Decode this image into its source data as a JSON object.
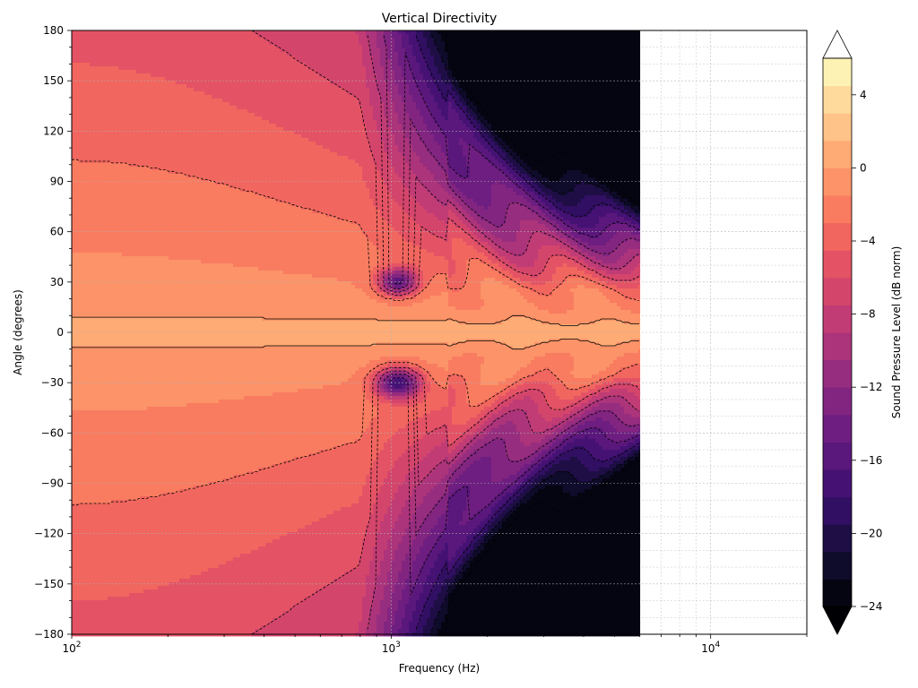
{
  "chart_data": {
    "type": "heatmap",
    "title": "Vertical Directivity",
    "xlabel": "Frequency (Hz)",
    "ylabel": "Angle (degrees)",
    "x_scale": "log",
    "xlim": [
      100,
      20000
    ],
    "ylim": [
      -180,
      180
    ],
    "data_x_max": 6000,
    "x_ticks": [
      {
        "value": 100,
        "base": "10",
        "exp": "2"
      },
      {
        "value": 1000,
        "base": "10",
        "exp": "3"
      },
      {
        "value": 10000,
        "base": "10",
        "exp": "4"
      }
    ],
    "y_ticks": [
      180,
      150,
      120,
      90,
      60,
      30,
      0,
      -30,
      -60,
      -90,
      -120,
      -150,
      -180
    ],
    "y_tick_labels": [
      "180",
      "150",
      "120",
      "90",
      "60",
      "30",
      "0",
      "−30",
      "−60",
      "−90",
      "−120",
      "−150",
      "−180"
    ],
    "grid": true,
    "colormap": "magma",
    "colorbar": {
      "label": "Sound Pressure Level (dB norm)",
      "min": -24,
      "max": 6,
      "step": 1.5,
      "extend": "both",
      "ticks": [
        4,
        0,
        -4,
        -8,
        -12,
        -16,
        -20,
        -24
      ],
      "tick_labels": [
        "4",
        "0",
        "−4",
        "−8",
        "−12",
        "−16",
        "−20",
        "−24"
      ]
    },
    "contour_levels": [
      0,
      -3,
      -6,
      -9,
      -12,
      -15,
      -18,
      -21,
      -24
    ],
    "features": {
      "on_axis_level_db": 0,
      "null_angles_deg": [
        30,
        -30
      ],
      "null_frequency_hz": 1050,
      "null_depth_db": -20
    }
  },
  "colors": {
    "background": "#ffffff",
    "grid": "#b0b0b0",
    "contour": "#000000",
    "magma_stops": [
      "#000004",
      "#140e36",
      "#3b0f70",
      "#641a80",
      "#8c2981",
      "#b73779",
      "#de4968",
      "#f7705c",
      "#fe9f6d",
      "#fecf92",
      "#fcfdbf"
    ]
  }
}
